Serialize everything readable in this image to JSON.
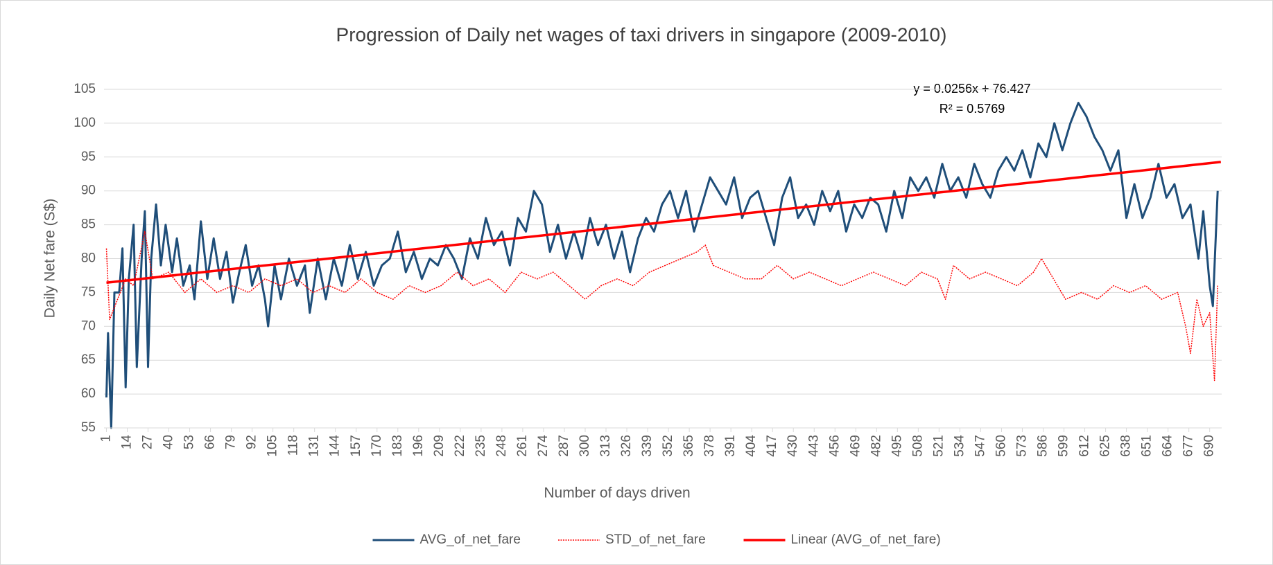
{
  "chart_data": {
    "type": "line",
    "title": "Progression of Daily net wages of taxi drivers in singapore (2009-2010)",
    "x_label": "Number of days driven",
    "y_label": "Daily Net fare (S$)",
    "annotations": [
      "y = 0.0256x + 76.427",
      "R² = 0.5769"
    ],
    "xlim": [
      -0.5,
      697.5
    ],
    "xticks": [
      1,
      14,
      27,
      40,
      53,
      66,
      79,
      92,
      105,
      118,
      131,
      144,
      157,
      170,
      183,
      196,
      209,
      222,
      235,
      248,
      261,
      274,
      287,
      300,
      313,
      326,
      339,
      352,
      365,
      378,
      391,
      404,
      417,
      430,
      443,
      456,
      469,
      482,
      495,
      508,
      521,
      534,
      547,
      560,
      573,
      586,
      599,
      612,
      625,
      638,
      651,
      664,
      677,
      690
    ],
    "ylim": [
      55,
      105
    ],
    "yticks": [
      55,
      60,
      65,
      70,
      75,
      80,
      85,
      90,
      95,
      100,
      105
    ],
    "grid": true,
    "legend": "bottom",
    "series": [
      {
        "name": "AVG_of_net_fare",
        "color": "#1f4e79",
        "style": "solid",
        "x": [
          1,
          2,
          4,
          6,
          9,
          11,
          13,
          15,
          18,
          20,
          23,
          25,
          27,
          29,
          32,
          35,
          38,
          42,
          45,
          49,
          53,
          56,
          60,
          64,
          68,
          72,
          76,
          80,
          84,
          88,
          92,
          96,
          100,
          102,
          106,
          110,
          115,
          120,
          125,
          128,
          133,
          138,
          143,
          148,
          153,
          158,
          163,
          168,
          173,
          178,
          183,
          188,
          193,
          198,
          203,
          208,
          213,
          218,
          223,
          228,
          233,
          238,
          243,
          248,
          253,
          258,
          263,
          268,
          273,
          278,
          283,
          288,
          293,
          298,
          303,
          308,
          313,
          318,
          323,
          328,
          333,
          338,
          343,
          348,
          353,
          358,
          363,
          368,
          373,
          378,
          383,
          388,
          393,
          398,
          403,
          408,
          413,
          418,
          423,
          428,
          433,
          438,
          443,
          448,
          453,
          458,
          463,
          468,
          473,
          478,
          483,
          488,
          493,
          498,
          503,
          508,
          513,
          518,
          523,
          528,
          533,
          538,
          543,
          548,
          553,
          558,
          563,
          568,
          573,
          578,
          583,
          588,
          593,
          598,
          603,
          608,
          613,
          618,
          623,
          628,
          633,
          638,
          643,
          648,
          653,
          658,
          663,
          668,
          673,
          678,
          683,
          686,
          690,
          692,
          695
        ],
        "values": [
          59.5,
          69,
          55,
          75,
          75,
          81.5,
          61,
          77,
          85,
          64,
          80,
          87,
          64,
          80,
          88,
          79,
          85,
          78,
          83,
          76,
          79,
          74,
          85.5,
          77,
          83,
          77,
          81,
          73.5,
          78,
          82,
          76,
          79,
          74,
          70,
          79,
          74,
          80,
          76,
          79,
          72,
          80,
          74,
          80,
          76,
          82,
          77,
          81,
          76,
          79,
          80,
          84,
          78,
          81,
          77,
          80,
          79,
          82,
          80,
          77,
          83,
          80,
          86,
          82,
          84,
          79,
          86,
          84,
          90,
          88,
          81,
          85,
          80,
          84,
          80,
          86,
          82,
          85,
          80,
          84,
          78,
          83,
          86,
          84,
          88,
          90,
          86,
          90,
          84,
          88,
          92,
          90,
          88,
          92,
          86,
          89,
          90,
          86,
          82,
          89,
          92,
          86,
          88,
          85,
          90,
          87,
          90,
          84,
          88,
          86,
          89,
          88,
          84,
          90,
          86,
          92,
          90,
          92,
          89,
          94,
          90,
          92,
          89,
          94,
          91,
          89,
          93,
          95,
          93,
          96,
          92,
          97,
          95,
          100,
          96,
          100,
          103,
          101,
          98,
          96,
          93,
          96,
          86,
          91,
          86,
          89,
          94,
          89,
          91,
          86,
          88,
          80,
          87,
          76,
          73,
          90
        ]
      },
      {
        "name": "STD_of_net_fare",
        "color": "#ff0000",
        "style": "dotted",
        "x": [
          1,
          3,
          8,
          13,
          18,
          25,
          30,
          40,
          50,
          60,
          70,
          80,
          90,
          100,
          110,
          120,
          130,
          140,
          150,
          160,
          170,
          180,
          190,
          200,
          210,
          220,
          230,
          240,
          250,
          260,
          270,
          280,
          290,
          300,
          310,
          320,
          330,
          340,
          350,
          360,
          370,
          375,
          380,
          390,
          400,
          410,
          420,
          430,
          440,
          450,
          460,
          470,
          480,
          490,
          500,
          510,
          520,
          525,
          530,
          540,
          550,
          560,
          570,
          580,
          585,
          590,
          600,
          610,
          620,
          630,
          640,
          650,
          660,
          670,
          675,
          678,
          682,
          686,
          690,
          693,
          695
        ],
        "values": [
          81.5,
          71,
          74,
          77,
          76,
          84,
          77,
          78,
          75,
          77,
          75,
          76,
          75,
          77,
          76,
          77,
          75,
          76,
          75,
          77,
          75,
          74,
          76,
          75,
          76,
          78,
          76,
          77,
          75,
          78,
          77,
          78,
          76,
          74,
          76,
          77,
          76,
          78,
          79,
          80,
          81,
          82,
          79,
          78,
          77,
          77,
          79,
          77,
          78,
          77,
          76,
          77,
          78,
          77,
          76,
          78,
          77,
          74,
          79,
          77,
          78,
          77,
          76,
          78,
          80,
          78,
          74,
          75,
          74,
          76,
          75,
          76,
          74,
          75,
          70,
          66,
          74,
          70,
          72,
          62,
          76
        ]
      },
      {
        "name": "Linear (AVG_of_net_fare)",
        "color": "#ff0000",
        "style": "trend",
        "x": [
          1,
          697
        ],
        "values": [
          76.453,
          94.27
        ]
      }
    ]
  }
}
